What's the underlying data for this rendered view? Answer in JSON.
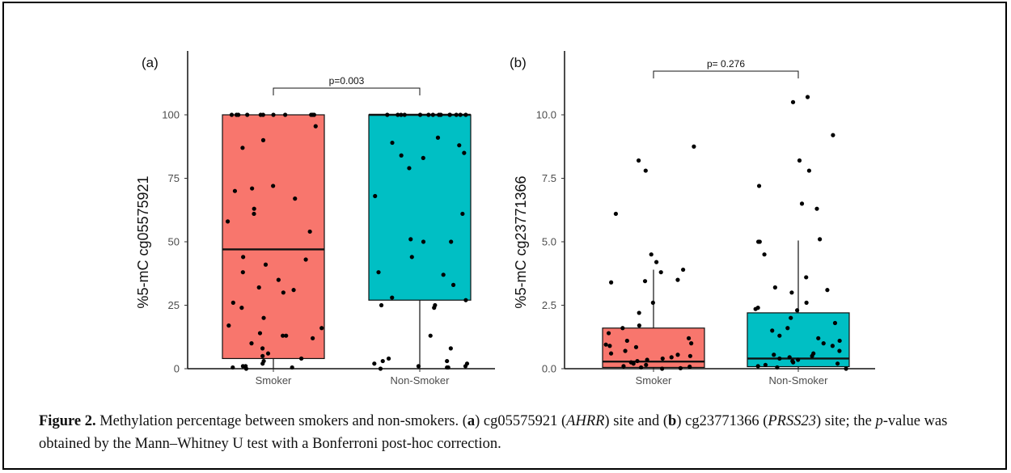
{
  "chart_data": [
    {
      "type": "box",
      "panel_label": "(a)",
      "ylabel": "%5-mC cg05575921",
      "ylim": [
        0,
        100
      ],
      "yticks": [
        "0",
        "25",
        "50",
        "75",
        "100"
      ],
      "categories": [
        "Smoker",
        "Non-Smoker"
      ],
      "colors": [
        "#F8766D",
        "#00BFC4"
      ],
      "boxes": [
        {
          "category": "Smoker",
          "q1": 4,
          "median": 47,
          "q3": 100,
          "whisker_low": 0,
          "whisker_high": 100
        },
        {
          "category": "Non-Smoker",
          "q1": 27,
          "median": 100,
          "q3": 100,
          "whisker_low": 0,
          "whisker_high": 100
        }
      ],
      "significance": {
        "label": "p=0.003",
        "from": "Smoker",
        "to": "Non-Smoker"
      },
      "points": [
        {
          "category": "Smoker",
          "values": [
            100,
            100,
            100,
            100,
            100,
            100,
            100,
            100,
            100,
            100,
            100,
            95.5,
            90,
            87,
            72,
            71,
            70,
            67,
            63,
            61,
            58,
            54,
            44,
            43,
            41,
            38,
            35,
            32,
            31,
            30,
            26,
            24,
            20,
            17,
            16,
            14,
            13,
            13,
            12,
            10,
            8,
            6,
            5,
            4,
            3,
            2,
            1,
            1,
            0.5,
            0.5,
            0
          ]
        },
        {
          "category": "Non-Smoker",
          "values": [
            100,
            100,
            100,
            100,
            100,
            100,
            100,
            100,
            100,
            100,
            100,
            100,
            100,
            100,
            91,
            89,
            88,
            85,
            84,
            83,
            79,
            68,
            61,
            51,
            50,
            50,
            44,
            38,
            37,
            33,
            28,
            27,
            25,
            25,
            24,
            13,
            8,
            4,
            3,
            3,
            2,
            2,
            1,
            1,
            0.5,
            0.5,
            0
          ]
        }
      ]
    },
    {
      "type": "box",
      "panel_label": "(b)",
      "ylabel": "%5-mC cg23771366",
      "ylim": [
        0,
        12
      ],
      "yticks": [
        "0.0",
        "2.5",
        "5.0",
        "7.5",
        "10.0"
      ],
      "categories": [
        "Smoker",
        "Non-Smoker"
      ],
      "colors": [
        "#F8766D",
        "#00BFC4"
      ],
      "boxes": [
        {
          "category": "Smoker",
          "q1": 0.05,
          "median": 0.28,
          "q3": 1.6,
          "whisker_low": 0,
          "whisker_high": 3.9
        },
        {
          "category": "Non-Smoker",
          "q1": 0.08,
          "median": 0.4,
          "q3": 2.2,
          "whisker_low": 0,
          "whisker_high": 5.05
        }
      ],
      "significance": {
        "label": "p= 0.276",
        "from": "Smoker",
        "to": "Non-Smoker"
      },
      "points": [
        {
          "category": "Smoker",
          "values": [
            8.75,
            8.2,
            7.8,
            6.1,
            4.5,
            4.2,
            3.9,
            3.8,
            3.5,
            3.45,
            3.4,
            2.6,
            2.2,
            1.7,
            1.6,
            1.4,
            1.2,
            1.1,
            1.0,
            0.95,
            0.9,
            0.85,
            0.7,
            0.6,
            0.55,
            0.5,
            0.45,
            0.4,
            0.35,
            0.3,
            0.25,
            0.2,
            0.15,
            0.1,
            0.08,
            0.05,
            0.02,
            0
          ]
        },
        {
          "category": "Non-Smoker",
          "values": [
            10.7,
            10.5,
            9.2,
            8.2,
            7.8,
            7.2,
            6.5,
            6.3,
            5.1,
            5.0,
            5.0,
            4.5,
            3.6,
            3.2,
            3.1,
            3.0,
            2.6,
            2.4,
            2.35,
            2.3,
            2.0,
            1.8,
            1.6,
            1.5,
            1.3,
            1.2,
            1.1,
            1.0,
            0.9,
            0.7,
            0.6,
            0.55,
            0.5,
            0.45,
            0.4,
            0.35,
            0.3,
            0.25,
            0.2,
            0.15,
            0.1,
            0.05,
            0
          ]
        }
      ]
    }
  ],
  "caption": {
    "figure_label": "Figure 2.",
    "text_1": " Methylation percentage between smokers and non-smokers. (",
    "a_label": "a",
    "text_2": ") cg05575921 (",
    "gene_a": "AHRR",
    "text_3": ") site and (",
    "b_label": "b",
    "text_4": ") cg23771366 (",
    "gene_b": "PRSS23",
    "text_5": ") site; the ",
    "p_italic": "p",
    "text_6": "-value was obtained by the Mann–Whitney U test with a Bonferroni post-hoc correction."
  }
}
